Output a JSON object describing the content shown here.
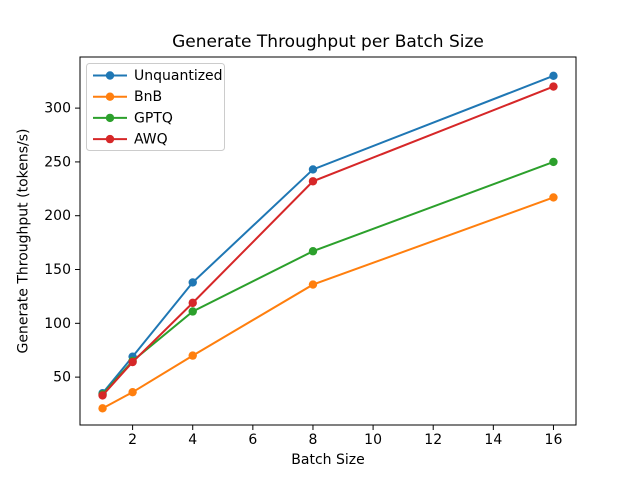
{
  "figure": {
    "title": "Generate Throughput per Batch Size",
    "xlabel": "Batch Size",
    "ylabel": "Generate Throughput (tokens/s)"
  },
  "chart_data": {
    "type": "line",
    "title": "Generate Throughput per Batch Size",
    "xlabel": "Batch Size",
    "ylabel": "Generate Throughput (tokens/s)",
    "x": [
      1,
      2,
      4,
      8,
      16
    ],
    "series": [
      {
        "name": "Unquantized",
        "color": "#1f77b4",
        "values": [
          35,
          69,
          138,
          243,
          330
        ]
      },
      {
        "name": "BnB",
        "color": "#ff7f0e",
        "values": [
          21,
          36,
          70,
          136,
          217
        ]
      },
      {
        "name": "GPTQ",
        "color": "#2ca02c",
        "values": [
          34,
          65,
          111,
          167,
          250
        ]
      },
      {
        "name": "AWQ",
        "color": "#d62728",
        "values": [
          33,
          64,
          119,
          232,
          320
        ]
      }
    ],
    "xticks": [
      2,
      4,
      6,
      8,
      10,
      12,
      14,
      16
    ],
    "yticks": [
      50,
      100,
      150,
      200,
      250,
      300
    ],
    "xlim": [
      0.25,
      16.75
    ],
    "ylim": [
      5.5,
      347.5
    ],
    "grid": false,
    "marker": "circle",
    "legend_position": "upper-left",
    "axis_color": "#000000",
    "legend_border_color": "#cccccc",
    "background_color": "#ffffff"
  }
}
